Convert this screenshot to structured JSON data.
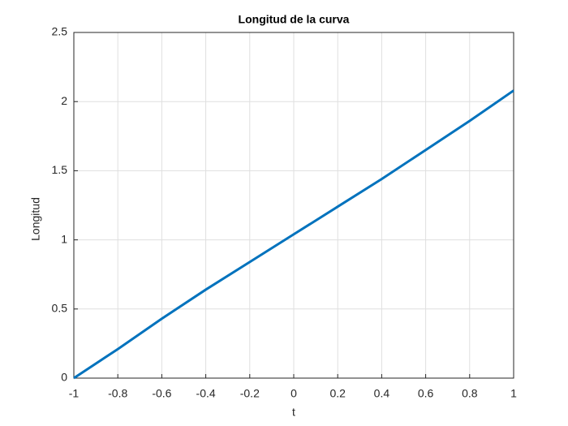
{
  "chart_data": {
    "type": "line",
    "title": "Longitud de la curva",
    "x_label": "t",
    "y_label": "Longitud",
    "x": [
      -1,
      -0.8,
      -0.6,
      -0.4,
      -0.2,
      0,
      0.2,
      0.4,
      0.6,
      0.8,
      1
    ],
    "series": [
      {
        "name": "Longitud",
        "color": "#0072bd",
        "values": [
          0,
          0.21,
          0.43,
          0.64,
          0.84,
          1.04,
          1.24,
          1.44,
          1.65,
          1.86,
          2.08
        ]
      }
    ],
    "xlim": [
      -1,
      1
    ],
    "xticks": [
      -1,
      -0.8,
      -0.6,
      -0.4,
      -0.2,
      0,
      0.2,
      0.4,
      0.6,
      0.8,
      1
    ],
    "ylim": [
      0,
      2.5
    ],
    "yticks": [
      0,
      0.5,
      1,
      1.5,
      2,
      2.5
    ],
    "grid": true
  }
}
